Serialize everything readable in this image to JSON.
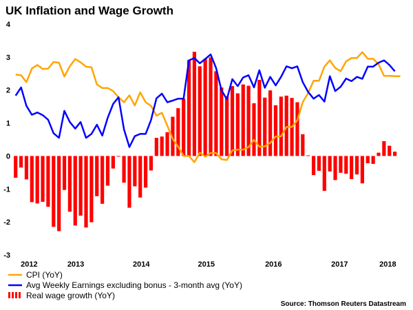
{
  "chart_data": {
    "type": "bar+line",
    "title": "UK Inflation and Wage Growth",
    "xlabel": "",
    "ylabel": "",
    "ylim": [
      -3,
      4
    ],
    "yticks": [
      4,
      3,
      2,
      1,
      0,
      -1,
      -2,
      -3
    ],
    "x_unit": "month index",
    "xticks": [
      {
        "label": "2012",
        "x": 3.5
      },
      {
        "label": "2013",
        "x": 12.1
      },
      {
        "label": "2014",
        "x": 24.2
      },
      {
        "label": "2015",
        "x": 36.2
      },
      {
        "label": "2016",
        "x": 48.6
      },
      {
        "label": "2017",
        "x": 60.8
      },
      {
        "label": "2018",
        "x": 69.7
      }
    ],
    "grid": false,
    "legend_position": "bottom-left",
    "series": [
      {
        "name": "CPI (YoY)",
        "kind": "line",
        "color": "#FFA500",
        "values": [
          2.47,
          2.45,
          2.24,
          2.65,
          2.76,
          2.64,
          2.65,
          2.85,
          2.83,
          2.41,
          2.72,
          2.94,
          2.84,
          2.71,
          2.69,
          2.17,
          2.06,
          2.06,
          1.97,
          1.78,
          1.63,
          1.84,
          1.53,
          1.93,
          1.63,
          1.52,
          1.22,
          1.31,
          0.92,
          0.52,
          0.28,
          0.0,
          0.0,
          -0.19,
          0.1,
          -0.02,
          0.09,
          0.09,
          -0.1,
          -0.12,
          0.17,
          0.19,
          0.19,
          0.27,
          0.49,
          0.28,
          0.29,
          0.4,
          0.59,
          0.6,
          0.88,
          0.88,
          1.08,
          1.63,
          1.91,
          2.28,
          2.28,
          2.71,
          2.9,
          2.67,
          2.57,
          2.87,
          2.97,
          2.97,
          3.15,
          2.95,
          2.95,
          2.78,
          2.43,
          2.43,
          2.42,
          2.42
        ]
      },
      {
        "name": "Avg Weekly Earnings excluding bonus - 3-month avg (YoY)",
        "kind": "line",
        "color": "#0000FF",
        "values": [
          1.83,
          2.08,
          1.52,
          1.25,
          1.32,
          1.24,
          1.1,
          0.69,
          0.55,
          1.37,
          1.03,
          0.83,
          1.03,
          0.55,
          0.67,
          0.95,
          0.62,
          1.16,
          1.58,
          1.78,
          0.81,
          0.27,
          0.6,
          0.67,
          0.67,
          1.09,
          1.75,
          1.89,
          1.63,
          1.68,
          1.74,
          1.74,
          2.9,
          2.97,
          2.81,
          2.94,
          3.08,
          2.67,
          1.99,
          1.72,
          2.33,
          2.12,
          2.38,
          2.45,
          2.08,
          2.6,
          2.07,
          2.4,
          2.14,
          2.4,
          2.72,
          2.66,
          2.72,
          2.24,
          1.94,
          1.74,
          1.85,
          1.65,
          2.42,
          1.97,
          2.1,
          2.35,
          2.27,
          2.4,
          2.34,
          2.71,
          2.71,
          2.83,
          2.9,
          2.76,
          2.57
        ]
      },
      {
        "name": "Real wage growth (YoY)",
        "kind": "bar",
        "color": "#FF0000",
        "values": [
          -0.66,
          -0.35,
          -0.71,
          -1.4,
          -1.44,
          -1.39,
          -1.54,
          -2.15,
          -2.28,
          -1.03,
          -1.69,
          -2.11,
          -1.81,
          -2.17,
          -2.01,
          -1.22,
          -1.45,
          -0.9,
          -0.38,
          -0.02,
          -0.81,
          -1.57,
          -0.92,
          -1.26,
          -0.96,
          -0.44,
          0.55,
          0.59,
          0.72,
          1.19,
          1.45,
          1.74,
          2.91,
          3.16,
          2.72,
          2.95,
          2.99,
          2.57,
          2.08,
          1.81,
          2.12,
          1.9,
          2.17,
          2.13,
          1.6,
          2.31,
          1.77,
          1.99,
          1.54,
          1.8,
          1.83,
          1.76,
          1.63,
          0.66,
          0.02,
          -0.58,
          -0.45,
          -1.06,
          -0.47,
          -0.73,
          -0.51,
          -0.54,
          -0.7,
          -0.56,
          -0.83,
          -0.22,
          -0.24,
          0.1,
          0.45,
          0.31,
          0.13
        ]
      }
    ],
    "source": "Source: Thomson Reuters Datastream"
  }
}
